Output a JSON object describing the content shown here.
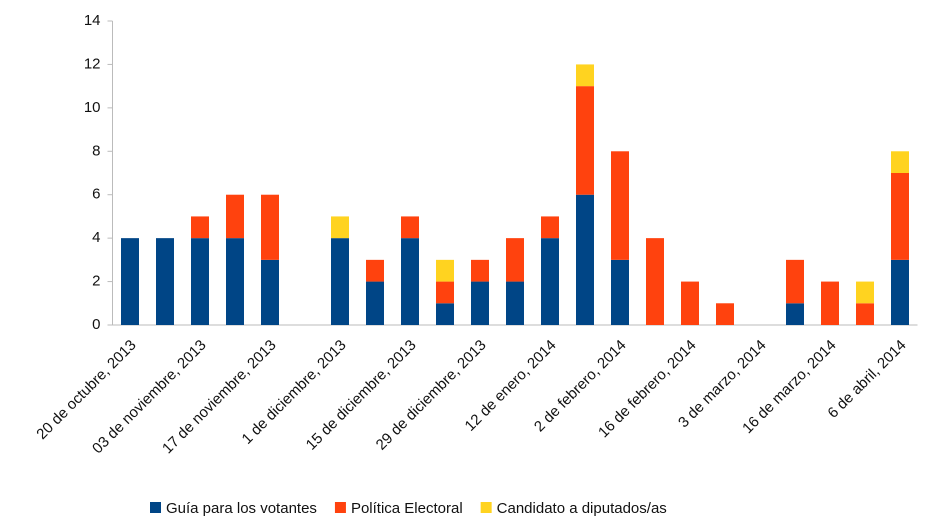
{
  "chart_data": {
    "type": "stacked_bar",
    "categories": [
      "20 de octubre, 2013",
      null,
      "03 de noviembre, 2013",
      null,
      "17 de noviembre, 2013",
      null,
      "1 de diciembre, 2013",
      null,
      "15 de diciembre, 2013",
      null,
      "29 de diciembre, 2013",
      null,
      "12 de enero, 2014",
      null,
      "2 de febrero, 2014",
      null,
      "16 de febrero, 2014",
      null,
      "3 de marzo, 2014",
      null,
      "16 de marzo, 2014",
      null,
      "6 de abril, 2014"
    ],
    "series": [
      {
        "name": "Guía para los votantes",
        "color": "#004586",
        "values": [
          4,
          4,
          4,
          4,
          3,
          0,
          4,
          2,
          4,
          1,
          2,
          2,
          4,
          6,
          3,
          0,
          0,
          0,
          0,
          1,
          0,
          0,
          3
        ]
      },
      {
        "name": "Política Electoral",
        "color": "#ff420e",
        "values": [
          0,
          0,
          1,
          2,
          3,
          0,
          0,
          1,
          1,
          1,
          1,
          2,
          1,
          5,
          5,
          4,
          2,
          1,
          0,
          2,
          2,
          1,
          4
        ]
      },
      {
        "name": "Candidato a diputados/as",
        "color": "#ffd320",
        "values": [
          0,
          0,
          0,
          0,
          0,
          0,
          1,
          0,
          0,
          1,
          0,
          0,
          0,
          1,
          0,
          0,
          0,
          0,
          0,
          0,
          0,
          1,
          1
        ]
      }
    ],
    "ylim": [
      0,
      14
    ],
    "yticks": [
      0,
      2,
      4,
      6,
      8,
      10,
      12,
      14
    ]
  }
}
